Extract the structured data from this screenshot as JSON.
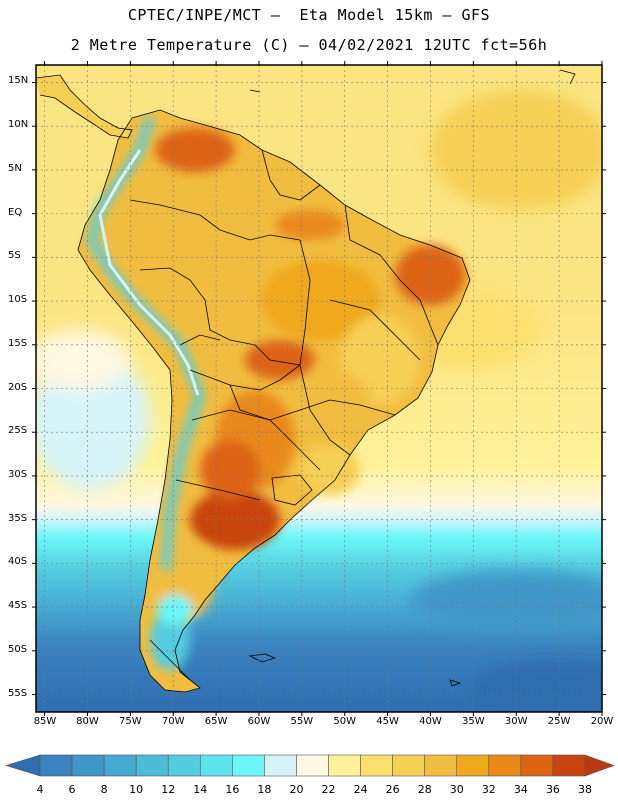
{
  "title": {
    "line1": "CPTEC/INPE/MCT –  Eta Model 15km – GFS",
    "line2": "2 Metre Temperature (C) – 04/02/2021 12UTC fct=56h"
  },
  "map": {
    "variable": "2 Metre Temperature",
    "units": "C",
    "lon_range": [
      -86,
      -20
    ],
    "lat_range": [
      17,
      -57
    ],
    "lat_ticks": [
      {
        "label": "15N",
        "value": 15
      },
      {
        "label": "10N",
        "value": 10
      },
      {
        "label": "5N",
        "value": 5
      },
      {
        "label": "EQ",
        "value": 0
      },
      {
        "label": "5S",
        "value": -5
      },
      {
        "label": "10S",
        "value": -10
      },
      {
        "label": "15S",
        "value": -15
      },
      {
        "label": "20S",
        "value": -20
      },
      {
        "label": "25S",
        "value": -25
      },
      {
        "label": "30S",
        "value": -30
      },
      {
        "label": "35S",
        "value": -35
      },
      {
        "label": "40S",
        "value": -40
      },
      {
        "label": "45S",
        "value": -45
      },
      {
        "label": "50S",
        "value": -50
      },
      {
        "label": "55S",
        "value": -55
      }
    ],
    "lon_ticks": [
      {
        "label": "85W",
        "value": -85
      },
      {
        "label": "80W",
        "value": -80
      },
      {
        "label": "75W",
        "value": -75
      },
      {
        "label": "70W",
        "value": -70
      },
      {
        "label": "65W",
        "value": -65
      },
      {
        "label": "60W",
        "value": -60
      },
      {
        "label": "55W",
        "value": -55
      },
      {
        "label": "50W",
        "value": -50
      },
      {
        "label": "45W",
        "value": -45
      },
      {
        "label": "40W",
        "value": -40
      },
      {
        "label": "35W",
        "value": -35
      },
      {
        "label": "30W",
        "value": -30
      },
      {
        "label": "25W",
        "value": -25
      },
      {
        "label": "20W",
        "value": -20
      }
    ]
  },
  "colorbar": {
    "labels": [
      "4",
      "6",
      "8",
      "10",
      "12",
      "14",
      "16",
      "18",
      "20",
      "22",
      "24",
      "26",
      "28",
      "30",
      "32",
      "34",
      "36",
      "38"
    ],
    "colors": [
      "#2f6db0",
      "#3a82c0",
      "#3f96c8",
      "#46a9d2",
      "#4cbcd8",
      "#55cde0",
      "#5ee3ec",
      "#6cf6f8",
      "#d6f4f8",
      "#fff8e2",
      "#fff29a",
      "#fbe070",
      "#f6cf55",
      "#f1bd40",
      "#f0a81e",
      "#e9891a",
      "#dd6412",
      "#c84410",
      "#b83a10"
    ]
  }
}
